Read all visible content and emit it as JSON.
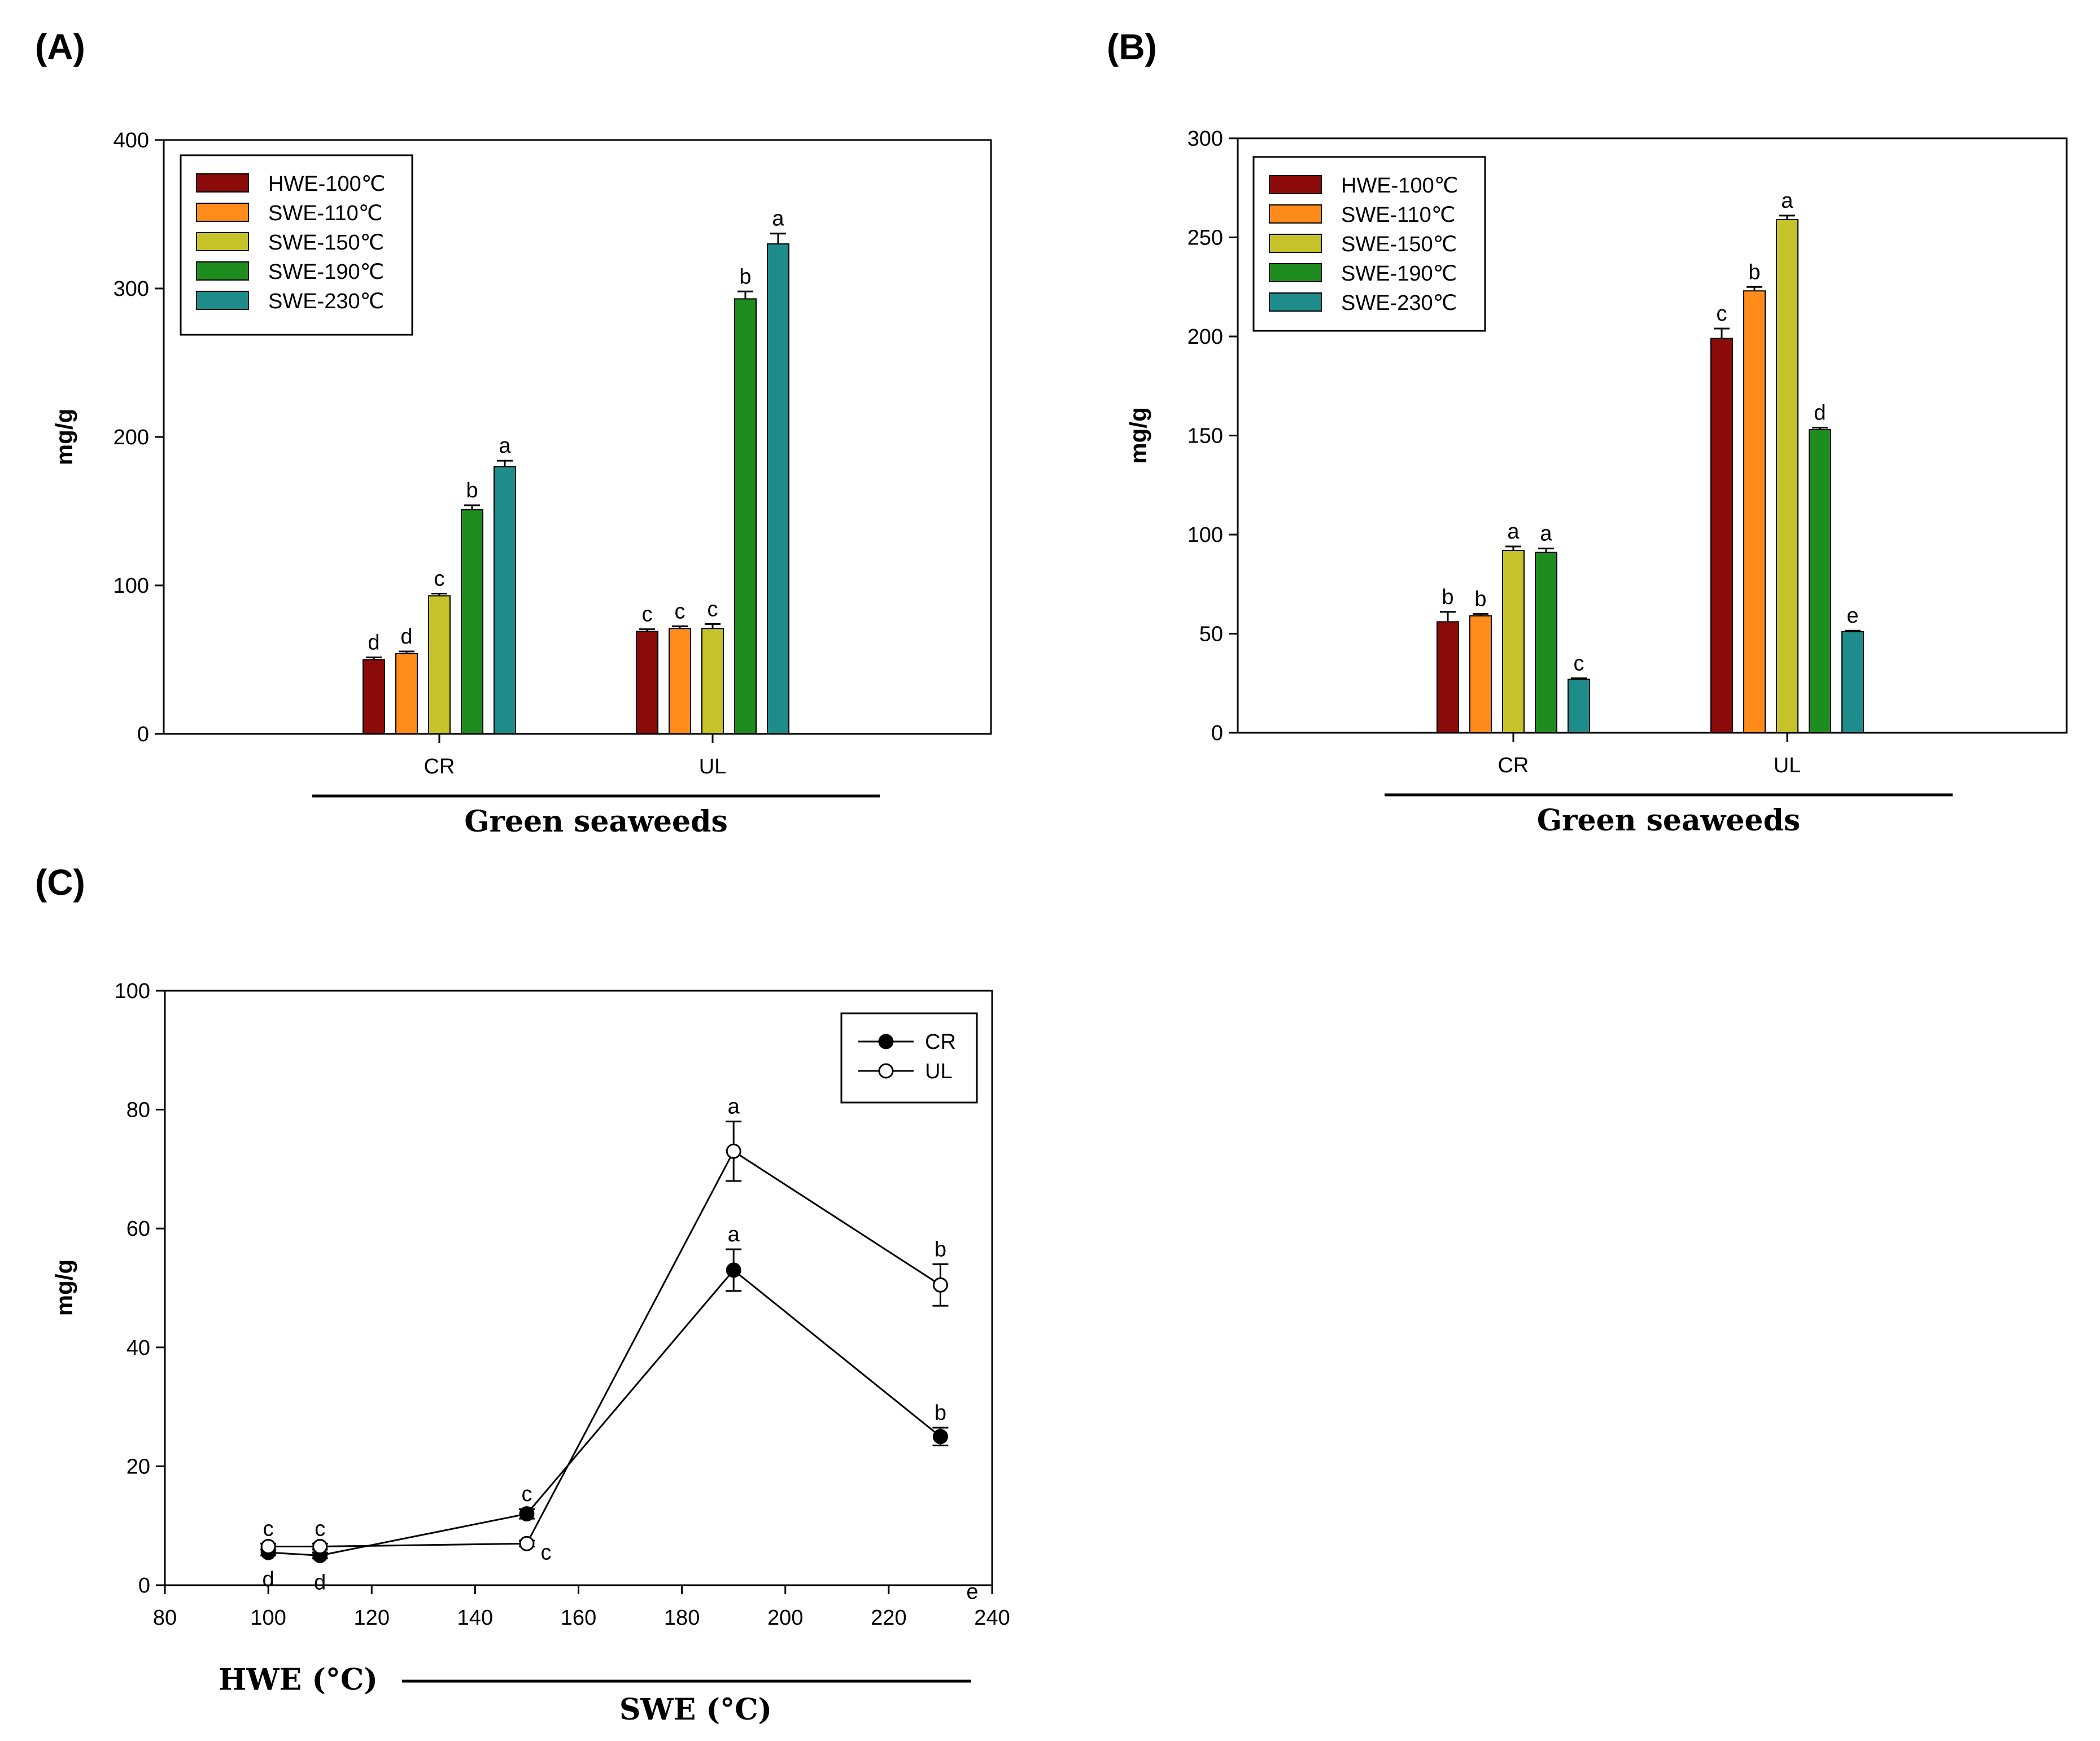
{
  "chart_data": [
    {
      "id": "A",
      "type": "bar",
      "panel_label": "(A)",
      "ylabel": "mg/g",
      "group_title": "Green seaweeds",
      "ylim": [
        0,
        400
      ],
      "yticks": [
        0,
        100,
        200,
        300,
        400
      ],
      "categories": [
        "CR",
        "UL"
      ],
      "series": [
        {
          "name": "HWE-100℃",
          "color": "#8B0A0A",
          "values": [
            50,
            69
          ],
          "errors": [
            1.5,
            1.5
          ],
          "letters": [
            "d",
            "c"
          ]
        },
        {
          "name": "SWE-110℃",
          "color": "#FF8C1A",
          "values": [
            54,
            71
          ],
          "errors": [
            1.5,
            1.5
          ],
          "letters": [
            "d",
            "c"
          ]
        },
        {
          "name": "SWE-150℃",
          "color": "#C6C229",
          "values": [
            93,
            71
          ],
          "errors": [
            1.5,
            3
          ],
          "letters": [
            "c",
            "c"
          ]
        },
        {
          "name": "SWE-190℃",
          "color": "#1F8C1F",
          "values": [
            151,
            293
          ],
          "errors": [
            3,
            5
          ],
          "letters": [
            "b",
            "b"
          ]
        },
        {
          "name": "SWE-230℃",
          "color": "#1F8C8C",
          "values": [
            180,
            330
          ],
          "errors": [
            4,
            7
          ],
          "letters": [
            "a",
            "a"
          ]
        }
      ]
    },
    {
      "id": "B",
      "type": "bar",
      "panel_label": "(B)",
      "ylabel": "mg/g",
      "group_title": "Green seaweeds",
      "ylim": [
        0,
        300
      ],
      "yticks": [
        0,
        50,
        100,
        150,
        200,
        250,
        300
      ],
      "categories": [
        "CR",
        "UL"
      ],
      "series": [
        {
          "name": "HWE-100℃",
          "color": "#8B0A0A",
          "values": [
            56,
            199
          ],
          "errors": [
            5,
            5
          ],
          "letters": [
            "b",
            "c"
          ]
        },
        {
          "name": "SWE-110℃",
          "color": "#FF8C1A",
          "values": [
            59,
            223
          ],
          "errors": [
            1,
            2
          ],
          "letters": [
            "b",
            "b"
          ]
        },
        {
          "name": "SWE-150℃",
          "color": "#C6C229",
          "values": [
            92,
            259
          ],
          "errors": [
            2,
            2
          ],
          "letters": [
            "a",
            "a"
          ]
        },
        {
          "name": "SWE-190℃",
          "color": "#1F8C1F",
          "values": [
            91,
            153
          ],
          "errors": [
            2,
            1
          ],
          "letters": [
            "a",
            "d"
          ]
        },
        {
          "name": "SWE-230℃",
          "color": "#1F8C8C",
          "values": [
            27,
            51
          ],
          "errors": [
            0.5,
            0.5
          ],
          "letters": [
            "c",
            "e"
          ]
        }
      ]
    },
    {
      "id": "C",
      "type": "line",
      "panel_label": "(C)",
      "ylabel": "mg/g",
      "xlabel_hwe": "HWE (°C)",
      "xlabel_swe": "SWE (°C)",
      "xlim": [
        80,
        240
      ],
      "ylim": [
        0,
        100
      ],
      "xticks": [
        80,
        100,
        120,
        140,
        160,
        180,
        200,
        220,
        240
      ],
      "yticks": [
        0,
        20,
        40,
        60,
        80,
        100
      ],
      "x": [
        100,
        110,
        150,
        190,
        230
      ],
      "series": [
        {
          "name": "CR",
          "marker": "filled",
          "values": [
            5.5,
            5,
            12,
            53,
            25
          ],
          "errors": [
            0.5,
            0.5,
            0.8,
            3.5,
            1.5
          ],
          "letters": [
            "d",
            "d",
            "c",
            "a",
            "b"
          ]
        },
        {
          "name": "UL",
          "marker": "open",
          "values": [
            6.5,
            6.5,
            7,
            73,
            50.5
          ],
          "errors": [
            0.5,
            0.5,
            0.5,
            5,
            3.5
          ],
          "letters": [
            "c",
            "c",
            "c",
            "a",
            "b"
          ]
        }
      ],
      "stray_letter": "e"
    }
  ]
}
